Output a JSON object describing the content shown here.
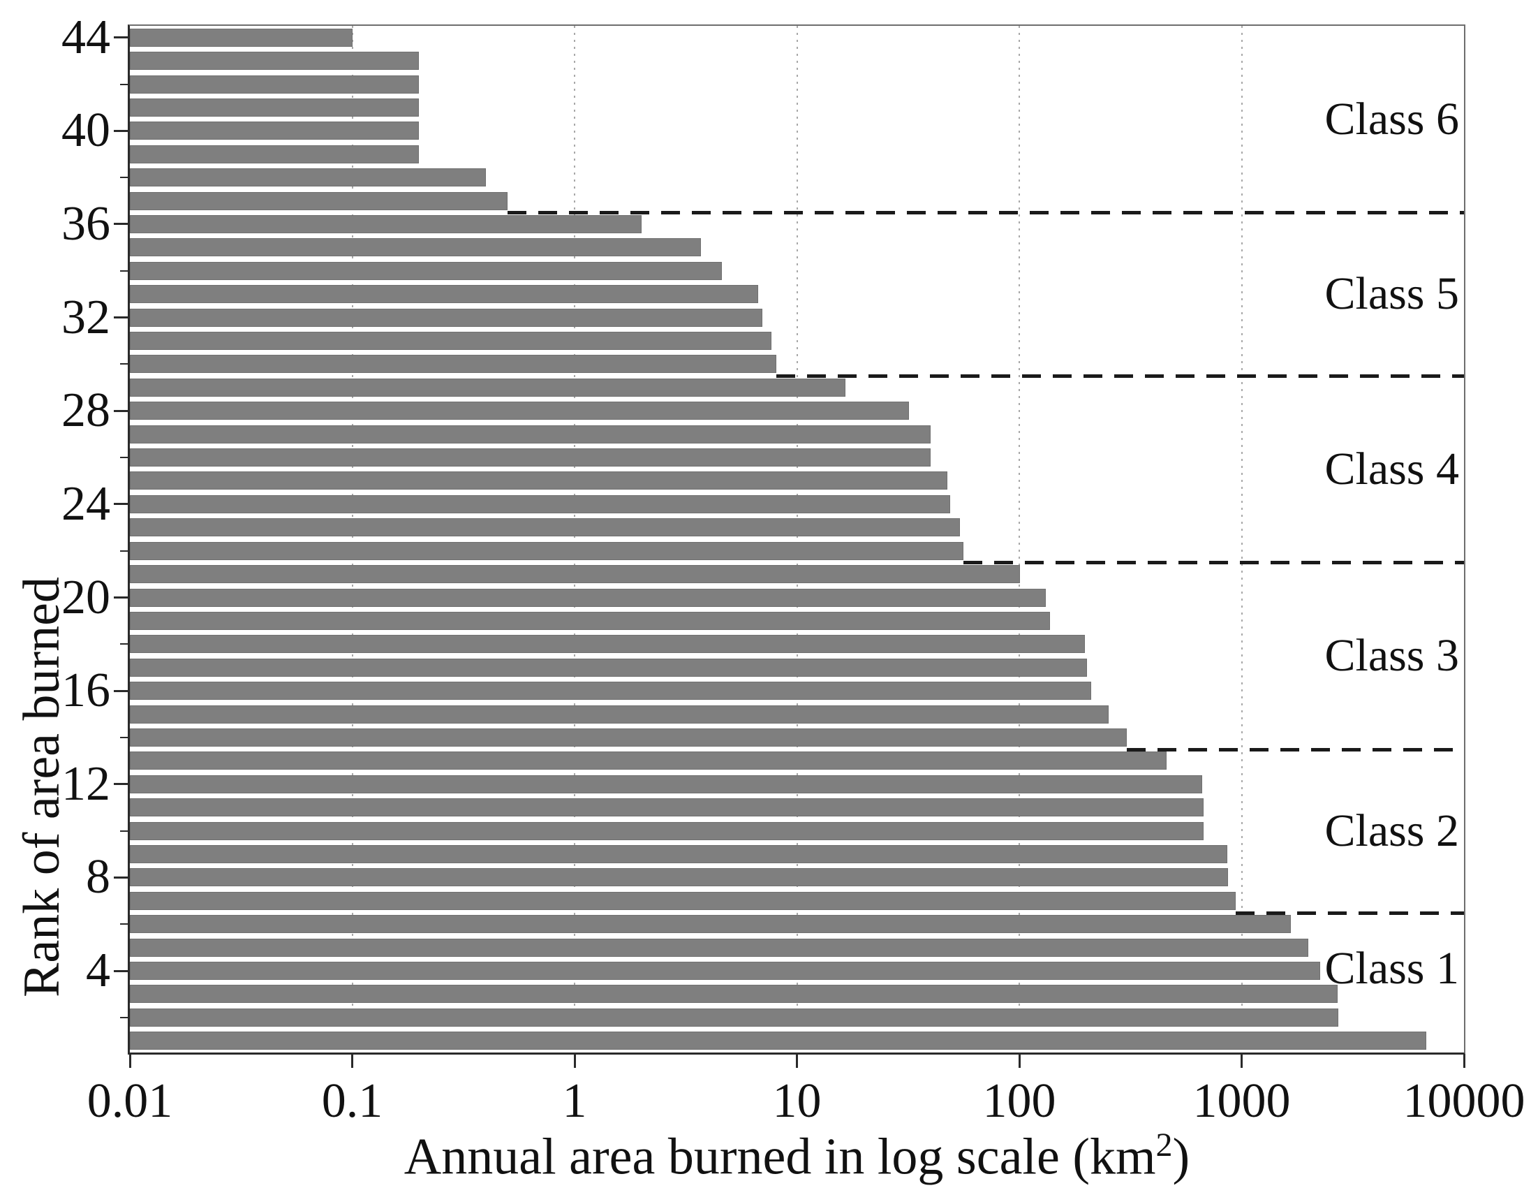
{
  "chart_data": {
    "type": "bar",
    "orientation": "horizontal",
    "title": "",
    "xlabel_parts": {
      "pre": "Annual area burned in log scale (km",
      "sup": "2",
      "post": ")"
    },
    "ylabel": "Rank of area burned",
    "x_scale": "log",
    "xlim": [
      0.01,
      10000
    ],
    "x_ticks": [
      "0.01",
      "0.1",
      "1",
      "10",
      "100",
      "1000",
      "10000"
    ],
    "y_major_ticks": [
      "44",
      "40",
      "36",
      "32",
      "28",
      "24",
      "20",
      "16",
      "12",
      "8",
      "4"
    ],
    "y_minor_ticks": [
      42,
      38,
      34,
      30,
      26,
      22,
      18,
      14,
      10,
      6,
      2
    ],
    "grid": "vertical dotted at each decade",
    "bar_color": "#7f7f7f",
    "categories_note": "rank of area burned, 44 (top) to 1 (bottom)",
    "bars": [
      {
        "rank": 44,
        "value": 0.1,
        "class": "Class 6"
      },
      {
        "rank": 43,
        "value": 0.2,
        "class": "Class 6"
      },
      {
        "rank": 42,
        "value": 0.2,
        "class": "Class 6"
      },
      {
        "rank": 41,
        "value": 0.2,
        "class": "Class 6"
      },
      {
        "rank": 40,
        "value": 0.2,
        "class": "Class 6"
      },
      {
        "rank": 39,
        "value": 0.2,
        "class": "Class 6"
      },
      {
        "rank": 38,
        "value": 0.4,
        "class": "Class 6"
      },
      {
        "rank": 37,
        "value": 0.5,
        "class": "Class 6"
      },
      {
        "rank": 36,
        "value": 2.0,
        "class": "Class 5"
      },
      {
        "rank": 35,
        "value": 3.7,
        "class": "Class 5"
      },
      {
        "rank": 34,
        "value": 4.6,
        "class": "Class 5"
      },
      {
        "rank": 33,
        "value": 6.7,
        "class": "Class 5"
      },
      {
        "rank": 32,
        "value": 7.0,
        "class": "Class 5"
      },
      {
        "rank": 31,
        "value": 7.7,
        "class": "Class 5"
      },
      {
        "rank": 30,
        "value": 8.1,
        "class": "Class 5"
      },
      {
        "rank": 29,
        "value": 16.5,
        "class": "Class 4"
      },
      {
        "rank": 28,
        "value": 32,
        "class": "Class 4"
      },
      {
        "rank": 27,
        "value": 40,
        "class": "Class 4"
      },
      {
        "rank": 26,
        "value": 40,
        "class": "Class 4"
      },
      {
        "rank": 25,
        "value": 47.5,
        "class": "Class 4"
      },
      {
        "rank": 24,
        "value": 49,
        "class": "Class 4"
      },
      {
        "rank": 23,
        "value": 54,
        "class": "Class 4"
      },
      {
        "rank": 22,
        "value": 56,
        "class": "Class 4"
      },
      {
        "rank": 21,
        "value": 101,
        "class": "Class 3"
      },
      {
        "rank": 20,
        "value": 132,
        "class": "Class 3"
      },
      {
        "rank": 19,
        "value": 137,
        "class": "Class 3"
      },
      {
        "rank": 18,
        "value": 198,
        "class": "Class 3"
      },
      {
        "rank": 17,
        "value": 202,
        "class": "Class 3"
      },
      {
        "rank": 16,
        "value": 210,
        "class": "Class 3"
      },
      {
        "rank": 15,
        "value": 253,
        "class": "Class 3"
      },
      {
        "rank": 14,
        "value": 305,
        "class": "Class 3"
      },
      {
        "rank": 13,
        "value": 460,
        "class": "Class 2"
      },
      {
        "rank": 12,
        "value": 665,
        "class": "Class 2"
      },
      {
        "rank": 11,
        "value": 675,
        "class": "Class 2"
      },
      {
        "rank": 10,
        "value": 675,
        "class": "Class 2"
      },
      {
        "rank": 9,
        "value": 865,
        "class": "Class 2"
      },
      {
        "rank": 8,
        "value": 870,
        "class": "Class 2"
      },
      {
        "rank": 7,
        "value": 940,
        "class": "Class 2"
      },
      {
        "rank": 6,
        "value": 1660,
        "class": "Class 1"
      },
      {
        "rank": 5,
        "value": 2000,
        "class": "Class 1"
      },
      {
        "rank": 4,
        "value": 2250,
        "class": "Class 1"
      },
      {
        "rank": 3,
        "value": 2700,
        "class": "Class 1"
      },
      {
        "rank": 2,
        "value": 2720,
        "class": "Class 1"
      },
      {
        "rank": 1,
        "value": 6760,
        "class": "Class 1"
      }
    ],
    "class_boundaries": [
      {
        "after_rank": 37,
        "line_starts_at_value": 0.5
      },
      {
        "after_rank": 30,
        "line_starts_at_value": 8.1
      },
      {
        "after_rank": 22,
        "line_starts_at_value": 56
      },
      {
        "after_rank": 14,
        "line_starts_at_value": 305
      },
      {
        "after_rank": 7,
        "line_starts_at_value": 940
      }
    ],
    "class_labels": [
      "Class 6",
      "Class 5",
      "Class 4",
      "Class 3",
      "Class 2",
      "Class 1"
    ],
    "legend_position": "none"
  }
}
